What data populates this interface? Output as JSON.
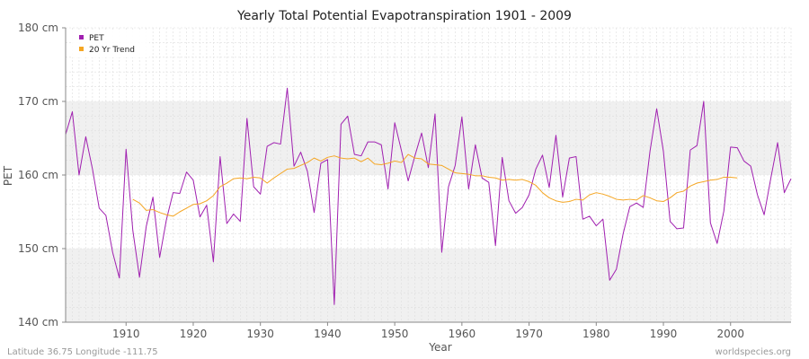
{
  "footer": {
    "location": "Latitude 36.75 Longitude -111.75",
    "source": "worldspecies.org"
  },
  "colors": {
    "pet": "#a020b0",
    "trend": "#f5a623",
    "band": "#f0f0f0",
    "grid": "#dddddd"
  },
  "chart_data": {
    "type": "line",
    "title": "Yearly Total Potential Evapotranspiration 1901 - 2009",
    "xlabel": "Year",
    "ylabel": "PET",
    "xlim": [
      1901,
      2009
    ],
    "ylim": [
      140,
      180
    ],
    "yticks": [
      {
        "value": 140,
        "label": "140 cm"
      },
      {
        "value": 150,
        "label": "150 cm"
      },
      {
        "value": 160,
        "label": "160 cm"
      },
      {
        "value": 170,
        "label": "170 cm"
      },
      {
        "value": 180,
        "label": "180 cm"
      }
    ],
    "xticks": [
      {
        "value": 1910,
        "label": "1910"
      },
      {
        "value": 1920,
        "label": "1920"
      },
      {
        "value": 1930,
        "label": "1930"
      },
      {
        "value": 1940,
        "label": "1940"
      },
      {
        "value": 1950,
        "label": "1950"
      },
      {
        "value": 1960,
        "label": "1960"
      },
      {
        "value": 1970,
        "label": "1970"
      },
      {
        "value": 1980,
        "label": "1980"
      },
      {
        "value": 1990,
        "label": "1990"
      },
      {
        "value": 2000,
        "label": "2000"
      }
    ],
    "legend": {
      "position": "top-left",
      "entries": [
        "PET",
        "20 Yr Trend"
      ]
    },
    "series": [
      {
        "name": "PET",
        "x_start": 1901,
        "values": [
          165.5,
          168.6,
          160.0,
          165.2,
          160.8,
          155.5,
          154.5,
          149.5,
          146.0,
          163.5,
          152.5,
          146.1,
          153.0,
          157.0,
          148.8,
          153.9,
          157.6,
          157.5,
          160.4,
          159.3,
          154.3,
          155.9,
          148.2,
          162.5,
          153.4,
          154.7,
          153.7,
          167.7,
          158.4,
          157.4,
          163.9,
          164.4,
          164.2,
          171.8,
          161.2,
          163.1,
          160.5,
          154.9,
          161.6,
          162.1,
          142.4,
          166.9,
          168.0,
          162.8,
          162.6,
          164.5,
          164.5,
          164.1,
          158.1,
          167.1,
          163.3,
          159.2,
          162.6,
          165.7,
          161.0,
          168.3,
          149.5,
          158.4,
          161.3,
          167.9,
          158.1,
          164.1,
          159.6,
          159.0,
          150.4,
          162.4,
          156.5,
          154.8,
          155.6,
          157.3,
          160.8,
          162.7,
          158.3,
          165.4,
          157.0,
          162.3,
          162.5,
          154.0,
          154.4,
          153.1,
          154.0,
          145.7,
          147.2,
          152.0,
          155.7,
          156.2,
          155.6,
          163.2,
          169.0,
          163.2,
          153.7,
          152.7,
          152.8,
          163.4,
          164.0,
          170.0,
          153.5,
          150.7,
          155.1,
          163.8,
          163.7,
          161.9,
          161.2,
          157.3,
          154.6,
          159.6,
          164.4,
          157.6,
          159.5
        ]
      },
      {
        "name": "20 Yr Trend",
        "x_start": 1911,
        "values": [
          156.7,
          156.2,
          155.2,
          155.3,
          154.9,
          154.6,
          154.4,
          155.0,
          155.5,
          156.0,
          156.1,
          156.5,
          157.2,
          158.4,
          158.9,
          159.5,
          159.6,
          159.5,
          159.7,
          159.6,
          158.9,
          159.6,
          160.2,
          160.8,
          160.9,
          161.3,
          161.7,
          162.3,
          161.9,
          162.4,
          162.6,
          162.3,
          162.2,
          162.3,
          161.8,
          162.3,
          161.5,
          161.4,
          161.6,
          161.9,
          161.7,
          162.8,
          162.3,
          162.2,
          161.5,
          161.4,
          161.3,
          160.8,
          160.3,
          160.2,
          160.1,
          159.9,
          159.9,
          159.7,
          159.6,
          159.3,
          159.4,
          159.3,
          159.4,
          159.1,
          158.6,
          157.6,
          156.9,
          156.5,
          156.3,
          156.4,
          156.7,
          156.6,
          157.3,
          157.6,
          157.4,
          157.1,
          156.7,
          156.6,
          156.7,
          156.6,
          157.2,
          156.9,
          156.5,
          156.4,
          156.9,
          157.6,
          157.8,
          158.5,
          158.9,
          159.1,
          159.3,
          159.4,
          159.7,
          159.7,
          159.6
        ]
      }
    ]
  }
}
